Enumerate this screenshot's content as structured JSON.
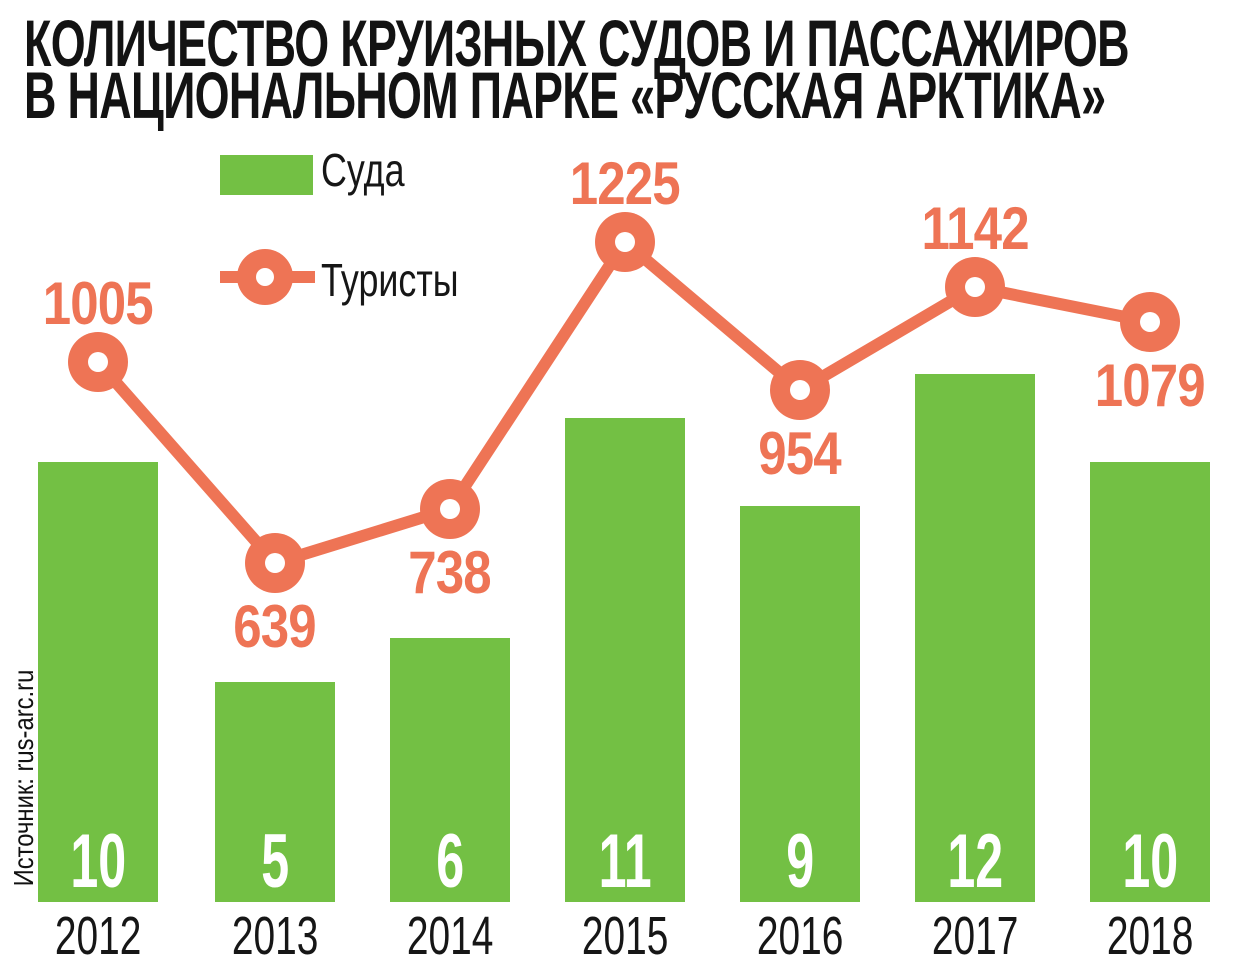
{
  "title": {
    "line1": "КОЛИЧЕСТВО КРУИЗНЫХ СУДОВ И ПАССАЖИРОВ",
    "line2": "В НАЦИОНАЛЬНОМ ПАРКЕ «РУССКАЯ АРКТИКА»"
  },
  "legend": {
    "ships_label": "Суда",
    "tourists_label": "Туристы"
  },
  "source": "Источник: rus-arc.ru",
  "colors": {
    "green": "#73C044",
    "orange": "#EE7455",
    "text_black": "#161616",
    "white": "#FFFFFF"
  },
  "chart_data": {
    "type": "combo-bar-line",
    "title": "Количество круизных судов и пассажиров в национальном парке «Русская Арктика»",
    "categories": [
      "2012",
      "2013",
      "2014",
      "2015",
      "2016",
      "2017",
      "2018"
    ],
    "series": [
      {
        "name": "Суда",
        "chart": "bar",
        "color": "#73C044",
        "values": [
          10,
          5,
          6,
          11,
          9,
          12,
          10
        ]
      },
      {
        "name": "Туристы",
        "chart": "line",
        "color": "#EE7455",
        "values": [
          1005,
          639,
          738,
          1225,
          954,
          1142,
          1079
        ]
      }
    ],
    "value_labels": true,
    "axes_hidden": true,
    "grid": false,
    "legend_position": "top-left",
    "tourist_label_side": [
      "above",
      "below",
      "below",
      "above",
      "below",
      "above",
      "below"
    ]
  }
}
